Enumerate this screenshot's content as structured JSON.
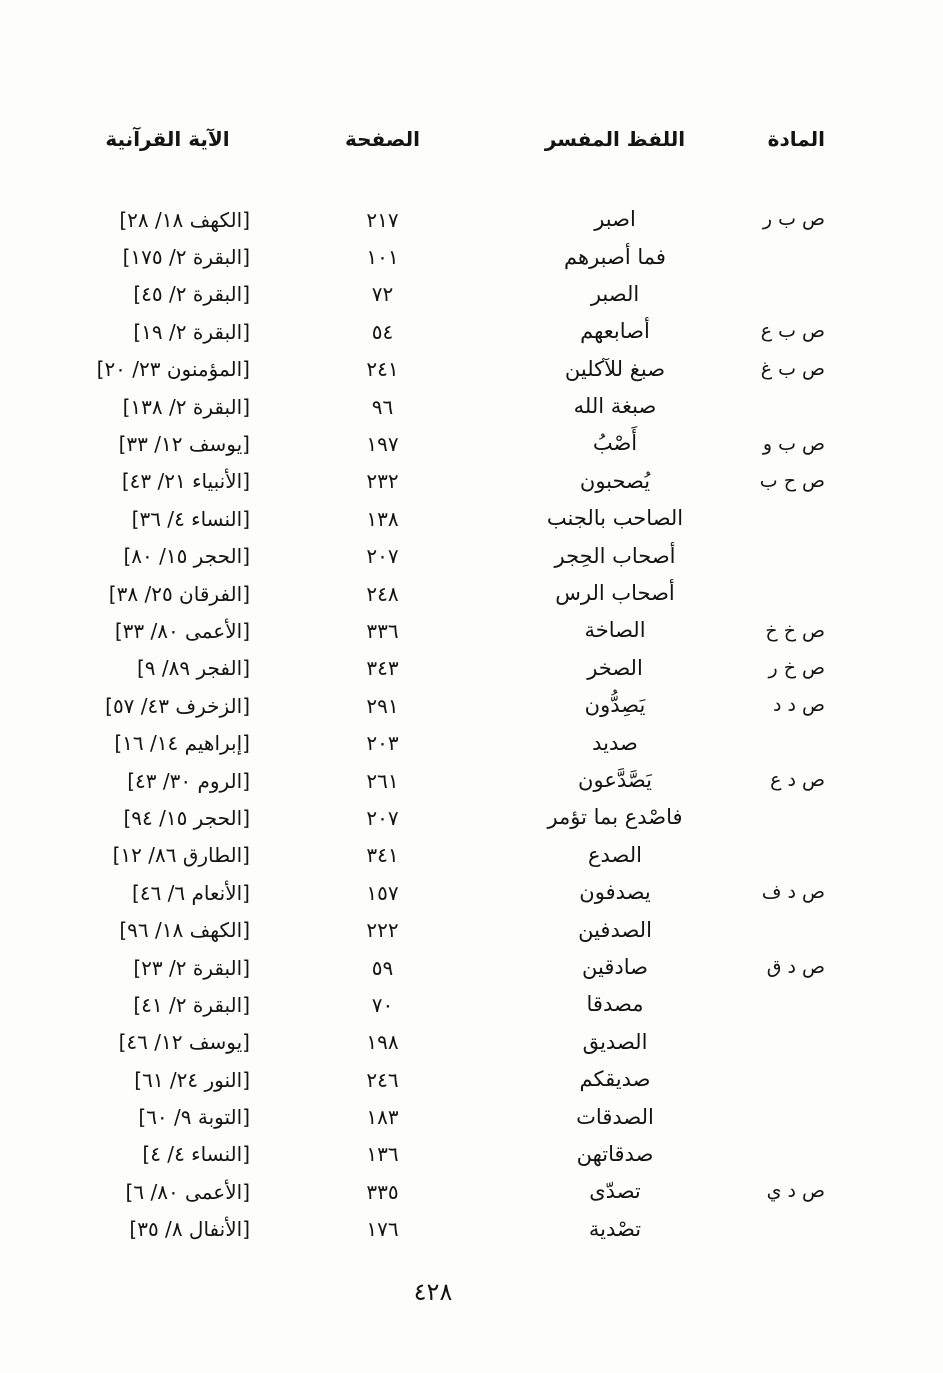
{
  "header": {
    "material": "المادة",
    "term": "اللفظ المفسر",
    "page": "الصفحة",
    "verse": "الآية القرآنية"
  },
  "folio_page_number": "٤٢٨",
  "rows": [
    {
      "material": "ص ب ر",
      "term": "اصبر",
      "page": "٢١٧",
      "verse": "[الكهف ١٨/ ٢٨]"
    },
    {
      "material": "",
      "term": "فما أصبرهم",
      "page": "١٠١",
      "verse": "[البقرة ٢/ ١٧٥]"
    },
    {
      "material": "",
      "term": "الصبر",
      "page": "٧٢",
      "verse": "[البقرة ٢/ ٤٥]"
    },
    {
      "material": "ص ب ع",
      "term": "أصابعهم",
      "page": "٥٤",
      "verse": "[البقرة ٢/ ١٩]"
    },
    {
      "material": "ص ب غ",
      "term": "صبغ للآكلين",
      "page": "٢٤١",
      "verse": "[المؤمنون ٢٣/ ٢٠]"
    },
    {
      "material": "",
      "term": "صبغة الله",
      "page": "٩٦",
      "verse": "[البقرة ٢/ ١٣٨]"
    },
    {
      "material": "ص ب و",
      "term": "أَصْبُ",
      "page": "١٩٧",
      "verse": "[يوسف ١٢/ ٣٣]"
    },
    {
      "material": "ص ح ب",
      "term": "يُصحبون",
      "page": "٢٣٢",
      "verse": "[الأنبياء ٢١/ ٤٣]"
    },
    {
      "material": "",
      "term": "الصاحب بالجنب",
      "page": "١٣٨",
      "verse": "[النساء ٤/ ٣٦]"
    },
    {
      "material": "",
      "term": "أصحاب الحِجر",
      "page": "٢٠٧",
      "verse": "[الحجر ١٥/ ٨٠]"
    },
    {
      "material": "",
      "term": "أصحاب الرس",
      "page": "٢٤٨",
      "verse": "[الفرقان ٢٥/ ٣٨]"
    },
    {
      "material": "ص خ خ",
      "term": "الصاخة",
      "page": "٣٣٦",
      "verse": "[الأعمى ٨٠/ ٣٣]"
    },
    {
      "material": "ص خ ر",
      "term": "الصخر",
      "page": "٣٤٣",
      "verse": "[الفجر ٨٩/ ٩]"
    },
    {
      "material": "ص د د",
      "term": "يَصِدُّون",
      "page": "٢٩١",
      "verse": "[الزخرف ٤٣/ ٥٧]"
    },
    {
      "material": "",
      "term": "صديد",
      "page": "٢٠٣",
      "verse": "[إبراهيم ١٤/ ١٦]"
    },
    {
      "material": "ص د ع",
      "term": "يَصَّدَّعون",
      "page": "٢٦١",
      "verse": "[الروم ٣٠/ ٤٣]"
    },
    {
      "material": "",
      "term": "فاصْدع بما تؤمر",
      "page": "٢٠٧",
      "verse": "[الحجر ١٥/ ٩٤]"
    },
    {
      "material": "",
      "term": "الصدع",
      "page": "٣٤١",
      "verse": "[الطارق ٨٦/ ١٢]"
    },
    {
      "material": "ص د ف",
      "term": "يصدفون",
      "page": "١٥٧",
      "verse": "[الأنعام ٦/ ٤٦]"
    },
    {
      "material": "",
      "term": "الصدفين",
      "page": "٢٢٢",
      "verse": "[الكهف ١٨/ ٩٦]"
    },
    {
      "material": "ص د ق",
      "term": "صادقين",
      "page": "٥٩",
      "verse": "[البقرة ٢/ ٢٣]"
    },
    {
      "material": "",
      "term": "مصدقا",
      "page": "٧٠",
      "verse": "[البقرة ٢/ ٤١]"
    },
    {
      "material": "",
      "term": "الصديق",
      "page": "١٩٨",
      "verse": "[يوسف ١٢/ ٤٦]"
    },
    {
      "material": "",
      "term": "صديقكم",
      "page": "٢٤٦",
      "verse": "[النور ٢٤/ ٦١]"
    },
    {
      "material": "",
      "term": "الصدقات",
      "page": "١٨٣",
      "verse": "[التوبة ٩/ ٦٠]"
    },
    {
      "material": "",
      "term": "صدقاتهن",
      "page": "١٣٦",
      "verse": "[النساء ٤/ ٤]"
    },
    {
      "material": "ص د ي",
      "term": "تصدّى",
      "page": "٣٣٥",
      "verse": "[الأعمى ٨٠/ ٦]"
    },
    {
      "material": "",
      "term": "تصْدية",
      "page": "١٧٦",
      "verse": "[الأنفال ٨/ ٣٥]"
    }
  ]
}
